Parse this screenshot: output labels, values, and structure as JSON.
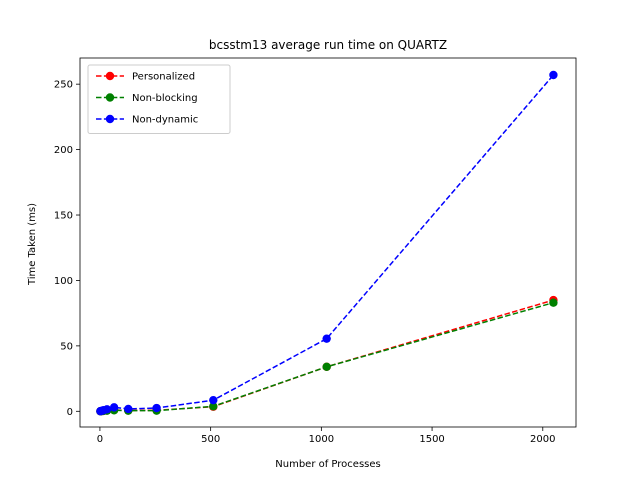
{
  "chart_data": {
    "type": "line",
    "title": "bcsstm13 average run time on QUARTZ",
    "xlabel": "Number of Processes",
    "ylabel": "Time Taken (ms)",
    "xlim": [
      -90,
      2150
    ],
    "ylim": [
      -12,
      270
    ],
    "x_ticks": [
      0,
      500,
      1000,
      1500,
      2000
    ],
    "y_ticks": [
      0,
      50,
      100,
      150,
      200,
      250
    ],
    "legend_position": "top-left",
    "grid": false,
    "series": [
      {
        "name": "Personalized",
        "color": "#ff0000",
        "x": [
          2,
          4,
          8,
          16,
          32,
          64,
          128,
          256,
          512,
          1024,
          2048
        ],
        "y": [
          0.05,
          0.1,
          0.15,
          0.3,
          0.6,
          1.0,
          0.6,
          0.8,
          3.5,
          34,
          85
        ]
      },
      {
        "name": "Non-blocking",
        "color": "#008000",
        "x": [
          2,
          4,
          8,
          16,
          32,
          64,
          128,
          256,
          512,
          1024,
          2048
        ],
        "y": [
          0.05,
          0.1,
          0.15,
          0.3,
          0.5,
          0.8,
          0.5,
          0.5,
          3.8,
          34,
          83
        ]
      },
      {
        "name": "Non-dynamic",
        "color": "#0000ff",
        "x": [
          2,
          4,
          8,
          16,
          32,
          64,
          128,
          256,
          512,
          1024,
          2048
        ],
        "y": [
          0.1,
          0.2,
          0.4,
          0.8,
          1.5,
          3.0,
          1.8,
          2.5,
          8.5,
          55.5,
          257
        ]
      }
    ]
  }
}
